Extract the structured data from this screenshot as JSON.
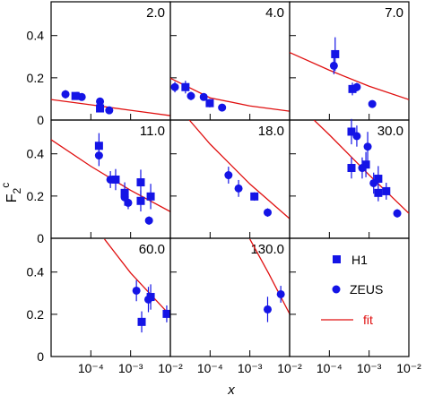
{
  "chart_data": {
    "type": "scatter",
    "y_label": [
      "F",
      "2",
      "c"
    ],
    "x_label": "x",
    "log_x": true,
    "xlim": [
      1e-05,
      0.01
    ],
    "ylim": [
      0,
      0.56
    ],
    "xticks": [
      {
        "value": 0.0001,
        "label": "10⁻⁴"
      },
      {
        "value": 0.001,
        "label": "10⁻³"
      },
      {
        "value": 0.01,
        "label": "10⁻²"
      }
    ],
    "yticks": [
      0,
      0.2,
      0.4
    ],
    "legend": [
      {
        "name": "H1",
        "marker": "square",
        "color": "#1414e6"
      },
      {
        "name": "ZEUS",
        "marker": "circle",
        "color": "#1414e6"
      },
      {
        "name": "fit",
        "marker": "line",
        "color": "#e01010"
      }
    ],
    "panels": [
      {
        "label": "2.0",
        "h1": {
          "x": [
            4.1e-05,
            0.00017
          ],
          "values": [
            0.114,
            0.055
          ],
          "errors": [
            0.012,
            0.012
          ]
        },
        "zeus": {
          "x": [
            2.3e-05,
            4.5e-05,
            5.9e-05,
            0.00017,
            0.00029
          ],
          "values": [
            0.122,
            0.114,
            0.109,
            0.088,
            0.046
          ],
          "errors": [
            0.02,
            0.015,
            0.012,
            0.015,
            0.01
          ]
        },
        "fit": {
          "x": [
            1e-05,
            0.0001,
            0.001,
            0.01
          ],
          "values": [
            0.097,
            0.072,
            0.046,
            0.021
          ]
        }
      },
      {
        "label": "4.0",
        "h1": {
          "x": [
            2.4e-05,
            9.8e-05
          ],
          "values": [
            0.156,
            0.08
          ],
          "errors": [
            0.03,
            0.02
          ]
        },
        "zeus": {
          "x": [
            1.3e-05,
            3.3e-05,
            6.9e-05,
            0.0002
          ],
          "values": [
            0.156,
            0.114,
            0.109,
            0.059
          ],
          "errors": [
            0.025,
            0.02,
            0.015,
            0.01
          ]
        },
        "fit": {
          "x": [
            1e-05,
            0.0001,
            0.001,
            0.01
          ],
          "values": [
            0.198,
            0.105,
            0.067,
            0.042
          ]
        }
      },
      {
        "label": "7.0",
        "h1": {
          "x": [
            0.00014,
            0.00038
          ],
          "values": [
            0.312,
            0.147
          ],
          "errors": [
            0.08,
            0.03
          ]
        },
        "zeus": {
          "x": [
            0.00013,
            0.00049,
            0.0012
          ],
          "values": [
            0.257,
            0.156,
            0.076
          ],
          "errors": [
            0.04,
            0.02,
            0.01
          ]
        },
        "fit": {
          "x": [
            1e-05,
            0.0001,
            0.001,
            0.01
          ],
          "values": [
            0.32,
            0.236,
            0.16,
            0.097
          ]
        }
      },
      {
        "label": "11.0",
        "h1": {
          "x": [
            0.00016,
            0.00042,
            0.00071,
            0.0018,
            0.0018,
            0.0032
          ],
          "values": [
            0.438,
            0.278,
            0.215,
            0.265,
            0.177,
            0.198
          ],
          "errors": [
            0.06,
            0.05,
            0.05,
            0.06,
            0.05,
            0.06
          ]
        },
        "zeus": {
          "x": [
            0.00016,
            0.00031,
            0.00071,
            0.00087,
            0.0029
          ],
          "values": [
            0.392,
            0.278,
            0.194,
            0.168,
            0.084
          ],
          "errors": [
            0.05,
            0.04,
            0.04,
            0.03,
            0.02
          ]
        },
        "fit": {
          "x": [
            1e-05,
            0.0001,
            0.001,
            0.01
          ],
          "values": [
            0.467,
            0.341,
            0.227,
            0.126
          ]
        }
      },
      {
        "label": "18.0",
        "h1": {
          "x": [
            0.0013
          ],
          "values": [
            0.198
          ],
          "errors": [
            0.02
          ]
        },
        "zeus": {
          "x": [
            0.00029,
            0.00052,
            0.0028
          ],
          "values": [
            0.299,
            0.236,
            0.122
          ],
          "errors": [
            0.04,
            0.04,
            0.02
          ]
        },
        "fit": {
          "x": [
            3e-05,
            0.0001,
            0.001,
            0.01
          ],
          "values": [
            0.56,
            0.446,
            0.257,
            0.093
          ]
        }
      },
      {
        "label": "30.0",
        "h1": {
          "x": [
            0.00036,
            0.00036,
            0.00083,
            0.0017,
            0.0017,
            0.0027
          ],
          "values": [
            0.505,
            0.333,
            0.349,
            0.282,
            0.215,
            0.223
          ],
          "errors": [
            0.06,
            0.05,
            0.06,
            0.06,
            0.04,
            0.04
          ]
        },
        "zeus": {
          "x": [
            0.00049,
            0.00067,
            0.00092,
            0.0013,
            0.0051
          ],
          "values": [
            0.484,
            0.333,
            0.434,
            0.261,
            0.118
          ],
          "errors": [
            0.05,
            0.05,
            0.07,
            0.05,
            0.02
          ]
        },
        "fit": {
          "x": [
            4.1e-05,
            0.0001,
            0.001,
            0.01
          ],
          "values": [
            0.56,
            0.49,
            0.3,
            0.118
          ]
        }
      },
      {
        "label": "60.0",
        "h1": {
          "x": [
            0.0019,
            0.0032,
            0.0081
          ],
          "values": [
            0.164,
            0.282,
            0.202
          ],
          "errors": [
            0.05,
            0.06,
            0.04
          ]
        },
        "zeus": {
          "x": [
            0.0014,
            0.0028
          ],
          "values": [
            0.312,
            0.27
          ],
          "errors": [
            0.05,
            0.06
          ]
        },
        "fit": {
          "x": [
            0.00022,
            0.001,
            0.01
          ],
          "values": [
            0.556,
            0.396,
            0.194
          ]
        }
      },
      {
        "label": "130.0",
        "h1": {
          "x": [],
          "values": [],
          "errors": []
        },
        "zeus": {
          "x": [
            0.0028,
            0.006
          ],
          "values": [
            0.223,
            0.295
          ],
          "errors": [
            0.06,
            0.04
          ]
        },
        "fit": {
          "x": [
            0.001,
            0.003,
            0.01
          ],
          "values": [
            0.556,
            0.392,
            0.202
          ]
        }
      }
    ]
  }
}
